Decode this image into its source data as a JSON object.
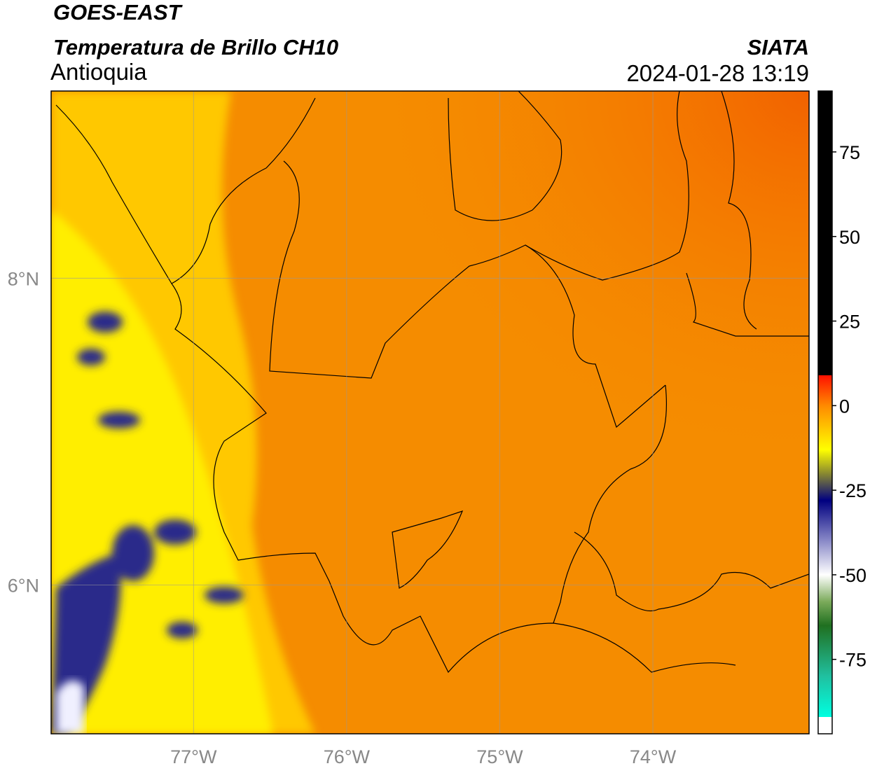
{
  "header": {
    "title": "GOES-EAST",
    "subtitle": "Temperatura de Brillo CH10",
    "region": "Antioquia",
    "source": "SIATA",
    "datetime": "2024-01-28 13:19"
  },
  "map": {
    "lonlim": [
      -77.93,
      -72.98
    ],
    "latlim": [
      5.03,
      9.22
    ],
    "lon_ticks": [
      {
        "value": -77,
        "label": "77°W"
      },
      {
        "value": -76,
        "label": "76°W"
      },
      {
        "value": -75,
        "label": "75°W"
      },
      {
        "value": -74,
        "label": "74°W"
      }
    ],
    "lat_ticks": [
      {
        "value": 8,
        "label": "8°N"
      },
      {
        "value": 6,
        "label": "6°N"
      }
    ]
  },
  "colorbar": {
    "lim": [
      -97,
      93
    ],
    "ticks": [
      75,
      50,
      25,
      0,
      -25,
      -50,
      -75
    ],
    "stops": [
      {
        "value": 93,
        "color": "#000000"
      },
      {
        "value": 9,
        "color": "#000000"
      },
      {
        "value": 9,
        "color": "#ff1000"
      },
      {
        "value": 0,
        "color": "#ff8a00"
      },
      {
        "value": -13,
        "color": "#ffff00"
      },
      {
        "value": -20,
        "color": "#8a8a30"
      },
      {
        "value": -28,
        "color": "#000080"
      },
      {
        "value": -40,
        "color": "#8a8ac8"
      },
      {
        "value": -50,
        "color": "#ffffff"
      },
      {
        "value": -58,
        "color": "#7aaa5a"
      },
      {
        "value": -65,
        "color": "#207020"
      },
      {
        "value": -80,
        "color": "#20c0a0"
      },
      {
        "value": -92,
        "color": "#00ffe0"
      },
      {
        "value": -92,
        "color": "#ffffff"
      },
      {
        "value": -97,
        "color": "#ffffff"
      }
    ]
  }
}
